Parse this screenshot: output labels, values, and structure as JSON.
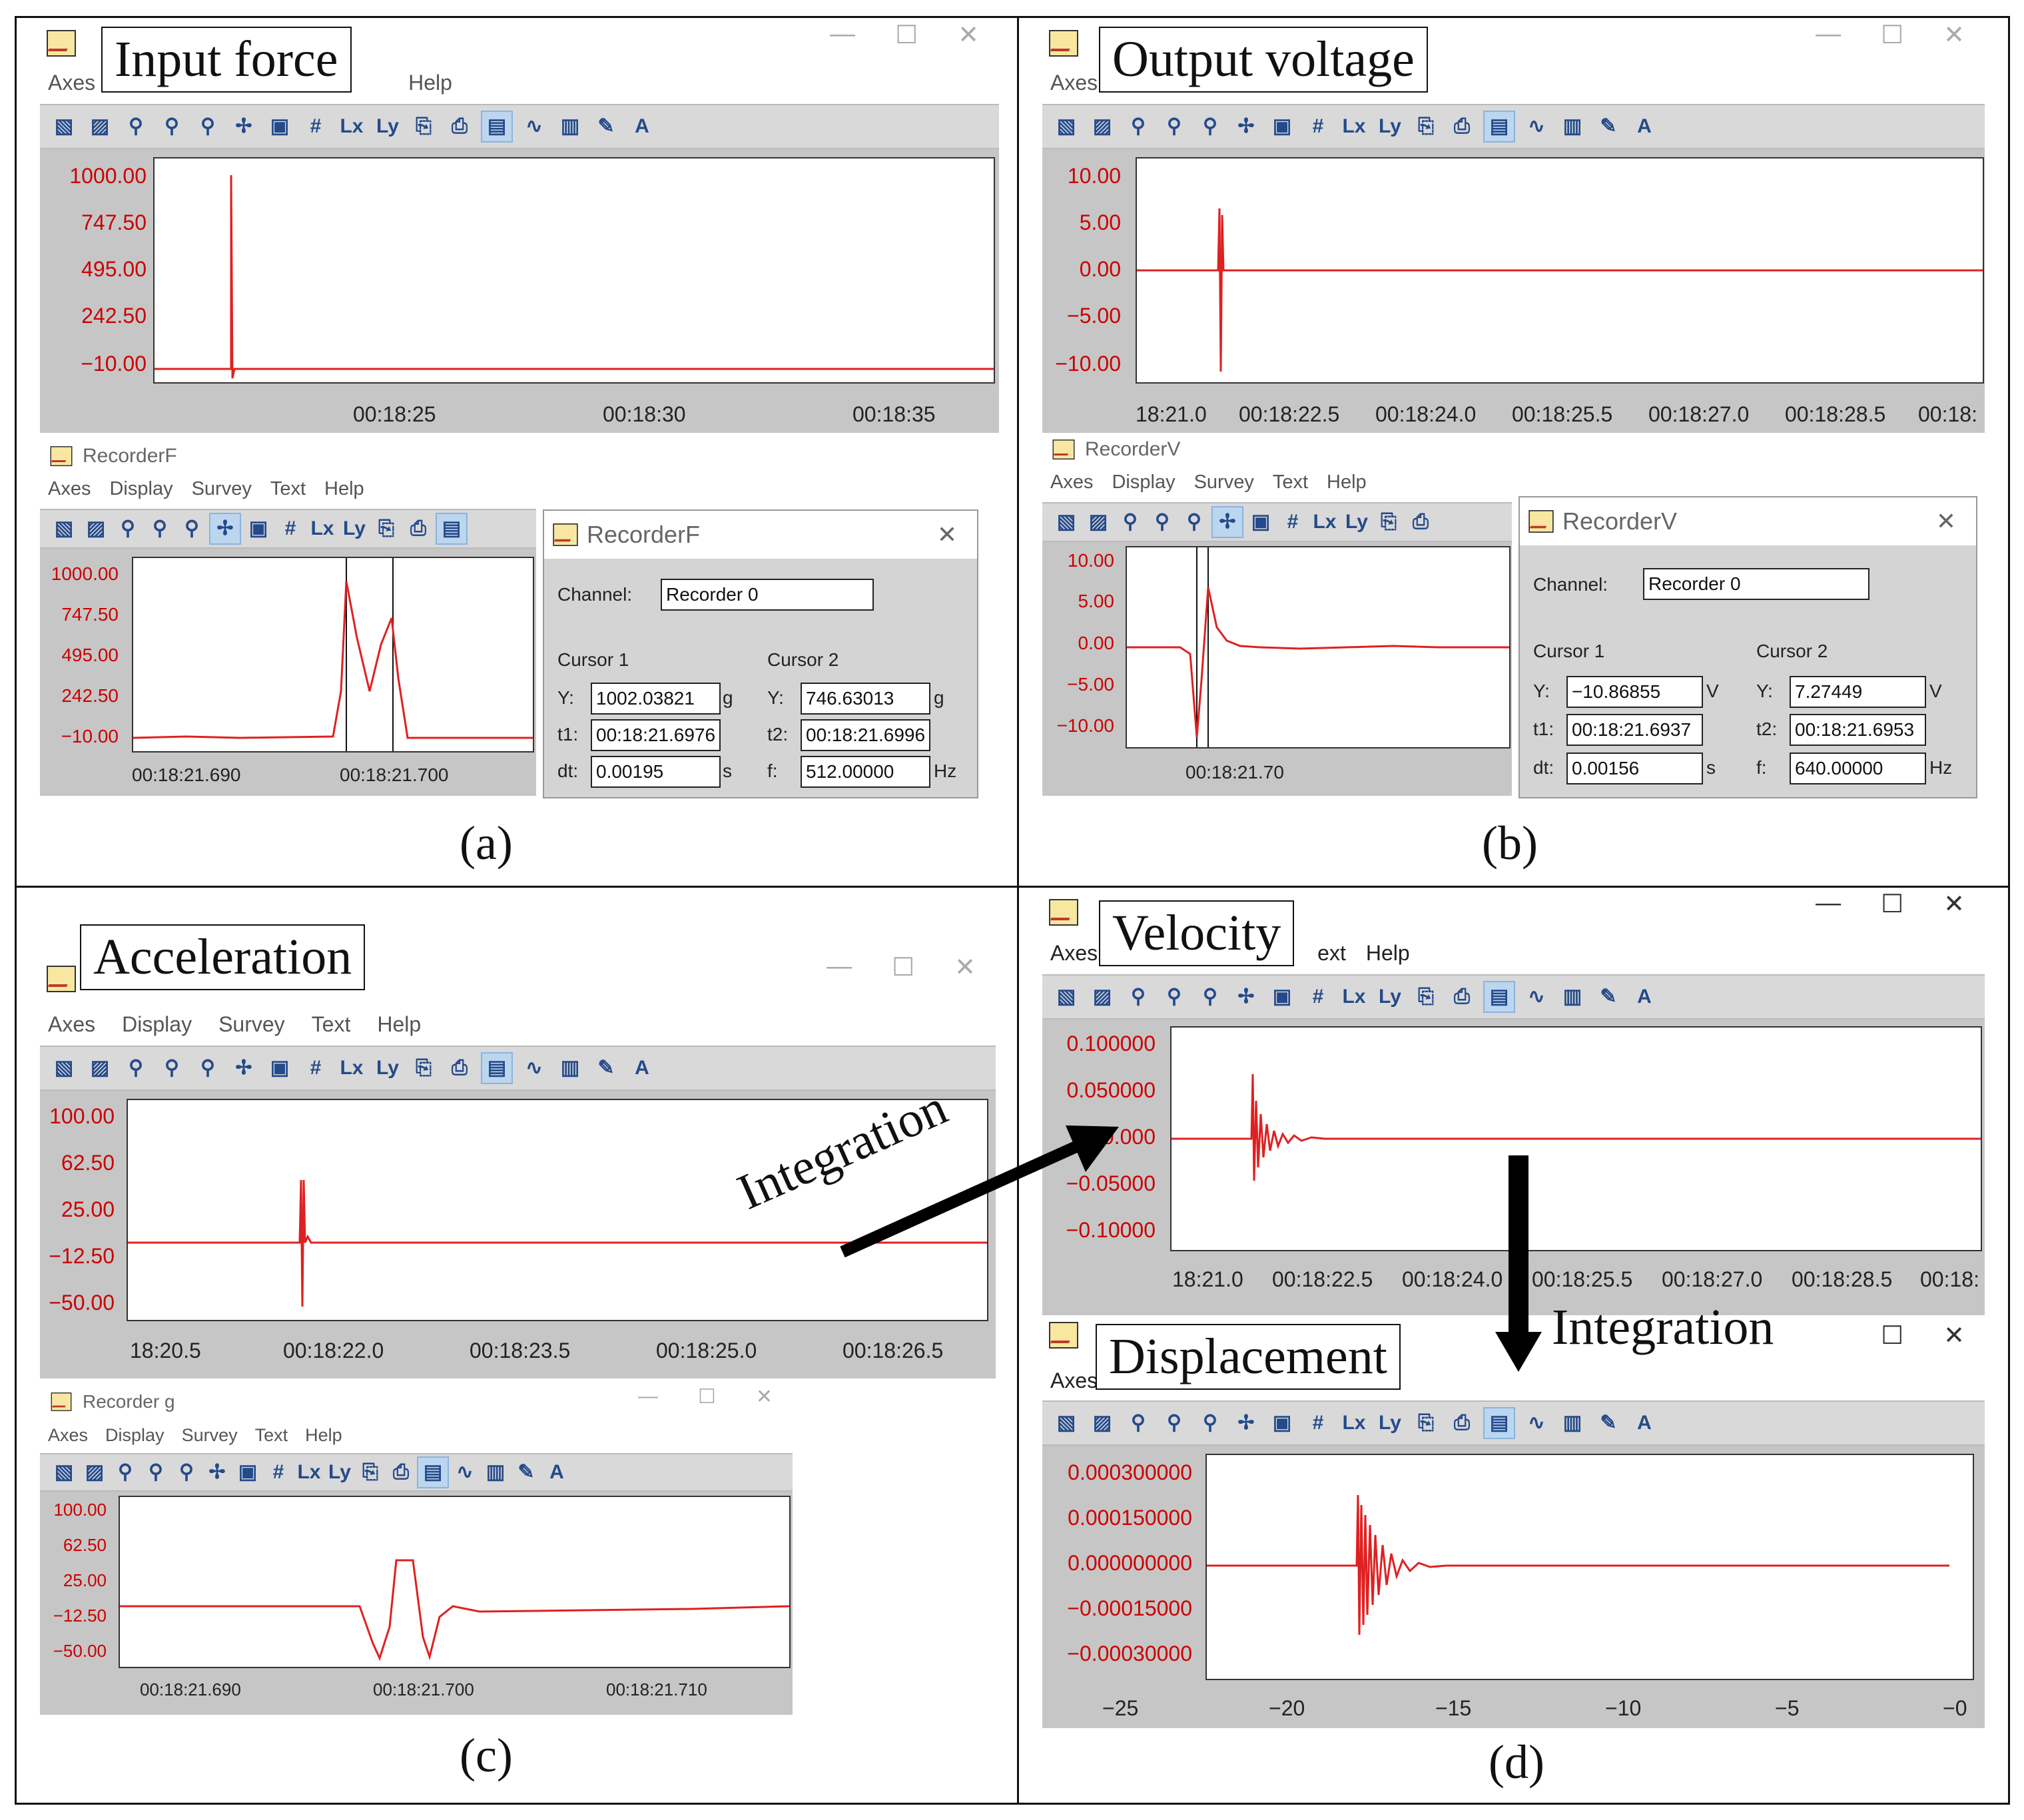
{
  "panels": {
    "a": {
      "label": "(a)",
      "title": "Input force",
      "main": {
        "menu": [
          "Axes",
          "Help"
        ],
        "yticks": [
          "1000.00",
          "747.50",
          "495.00",
          "242.50",
          "−10.00"
        ],
        "xticks": [
          "00:18:25",
          "00:18:30",
          "00:18:35"
        ]
      },
      "recorder": {
        "window_title": "RecorderF",
        "menu": [
          "Axes",
          "Display",
          "Survey",
          "Text",
          "Help"
        ],
        "yticks": [
          "1000.00",
          "747.50",
          "495.00",
          "242.50",
          "−10.00"
        ],
        "xticks": [
          "00:18:21.690",
          "00:18:21.700"
        ]
      },
      "dialog": {
        "title": "RecorderF",
        "channel_label": "Channel:",
        "channel_value": "Recorder 0",
        "cursor1": "Cursor 1",
        "cursor2": "Cursor 2",
        "y1_label": "Y:",
        "y1": "1002.03821",
        "y1_unit": "g",
        "y2_label": "Y:",
        "y2": "746.63013",
        "y2_unit": "g",
        "t1_label": "t1:",
        "t1": "00:18:21.6976",
        "t2_label": "t2:",
        "t2": "00:18:21.6996",
        "dt_label": "dt:",
        "dt": "0.00195",
        "dt_unit": "s",
        "f_label": "f:",
        "f": "512.00000",
        "f_unit": "Hz"
      }
    },
    "b": {
      "label": "(b)",
      "title": "Output voltage",
      "main": {
        "menu": [
          "Axes"
        ],
        "yticks": [
          "10.00",
          "5.00",
          "0.00",
          "−5.00",
          "−10.00"
        ],
        "xticks": [
          "18:21.0",
          "00:18:22.5",
          "00:18:24.0",
          "00:18:25.5",
          "00:18:27.0",
          "00:18:28.5",
          "00:18:"
        ]
      },
      "recorder": {
        "window_title": "RecorderV",
        "menu": [
          "Axes",
          "Display",
          "Survey",
          "Text",
          "Help"
        ],
        "yticks": [
          "10.00",
          "5.00",
          "0.00",
          "−5.00",
          "−10.00"
        ],
        "xticks": [
          "00:18:21.70"
        ]
      },
      "dialog": {
        "title": "RecorderV",
        "channel_label": "Channel:",
        "channel_value": "Recorder 0",
        "cursor1": "Cursor 1",
        "cursor2": "Cursor 2",
        "y1_label": "Y:",
        "y1": "−10.86855",
        "y1_unit": "V",
        "y2_label": "Y:",
        "y2": "7.27449",
        "y2_unit": "V",
        "t1_label": "t1:",
        "t1": "00:18:21.6937",
        "t2_label": "t2:",
        "t2": "00:18:21.6953",
        "dt_label": "dt:",
        "dt": "0.00156",
        "dt_unit": "s",
        "f_label": "f:",
        "f": "640.00000",
        "f_unit": "Hz"
      }
    },
    "c": {
      "label": "(c)",
      "title": "Acceleration",
      "main": {
        "menu": [
          "Axes",
          "Display",
          "Survey",
          "Text",
          "Help"
        ],
        "yticks": [
          "100.00",
          "62.50",
          "25.00",
          "−12.50",
          "−50.00"
        ],
        "xticks": [
          "18:20.5",
          "00:18:22.0",
          "00:18:23.5",
          "00:18:25.0",
          "00:18:26.5"
        ]
      },
      "recorder": {
        "window_title": "Recorder g",
        "menu": [
          "Axes",
          "Display",
          "Survey",
          "Text",
          "Help"
        ],
        "yticks": [
          "100.00",
          "62.50",
          "25.00",
          "−12.50",
          "−50.00"
        ],
        "xticks": [
          "00:18:21.690",
          "00:18:21.700",
          "00:18:21.710"
        ]
      }
    },
    "d": {
      "label": "(d)",
      "velocity": {
        "title": "Velocity",
        "menu": [
          "Axes",
          "ext",
          "Help"
        ],
        "yticks": [
          "0.100000",
          "0.050000",
          "0.000",
          "−0.05000",
          "−0.10000"
        ],
        "xticks": [
          "18:21.0",
          "00:18:22.5",
          "00:18:24.0",
          "00:18:25.5",
          "00:18:27.0",
          "00:18:28.5",
          "00:18:"
        ]
      },
      "displacement": {
        "title": "Displacement",
        "menu": [
          "Axes"
        ],
        "yticks": [
          "0.000300000",
          "0.000150000",
          "0.000000000",
          "−0.00015000",
          "−0.00030000"
        ],
        "xticks": [
          "−25",
          "−20",
          "−15",
          "−10",
          "−5",
          "−0"
        ]
      }
    }
  },
  "annotations": {
    "integration_1": "Integration",
    "integration_2": "Integration"
  },
  "colors": {
    "signal": "#e02020",
    "tick_text": "#cc0000",
    "plot_bg": "#c6c6c6",
    "toolbar": "#d9d9d9"
  }
}
